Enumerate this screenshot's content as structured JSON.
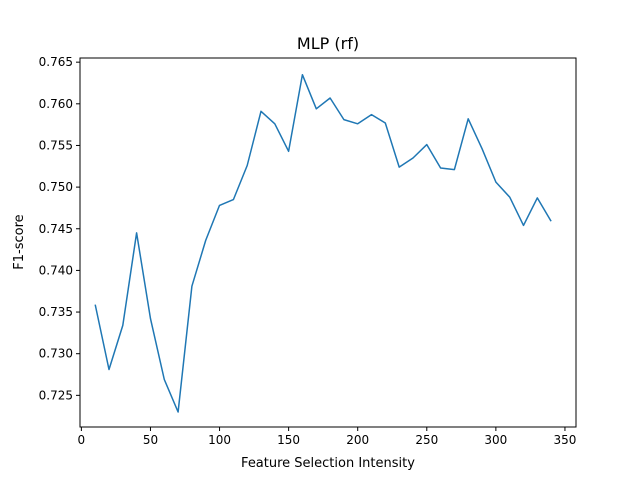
{
  "chart_data": {
    "type": "line",
    "title": "MLP (rf)",
    "xlabel": "Feature Selection Intensity",
    "ylabel": "F1-score",
    "xlim": [
      -1,
      358
    ],
    "ylim": [
      0.7212,
      0.7655
    ],
    "x_ticks": [
      0,
      50,
      100,
      150,
      200,
      250,
      300,
      350
    ],
    "y_ticks": [
      0.725,
      0.73,
      0.735,
      0.74,
      0.745,
      0.75,
      0.755,
      0.76,
      0.765
    ],
    "grid": false,
    "series": [
      {
        "color": "#1f77b4",
        "x": [
          10,
          20,
          30,
          40,
          50,
          60,
          70,
          80,
          90,
          100,
          110,
          120,
          130,
          140,
          150,
          160,
          170,
          180,
          190,
          200,
          210,
          220,
          230,
          240,
          250,
          260,
          270,
          280,
          290,
          300,
          310,
          320,
          330,
          340
        ],
        "y": [
          0.7359,
          0.7281,
          0.7334,
          0.7445,
          0.7342,
          0.7269,
          0.723,
          0.7381,
          0.7436,
          0.7478,
          0.7485,
          0.7526,
          0.7591,
          0.7576,
          0.7543,
          0.7635,
          0.7594,
          0.7607,
          0.7581,
          0.7576,
          0.7587,
          0.7577,
          0.7524,
          0.7535,
          0.7551,
          0.7523,
          0.7521,
          0.7582,
          0.7546,
          0.7506,
          0.7488,
          0.7454,
          0.7487,
          0.7459
        ]
      }
    ]
  }
}
